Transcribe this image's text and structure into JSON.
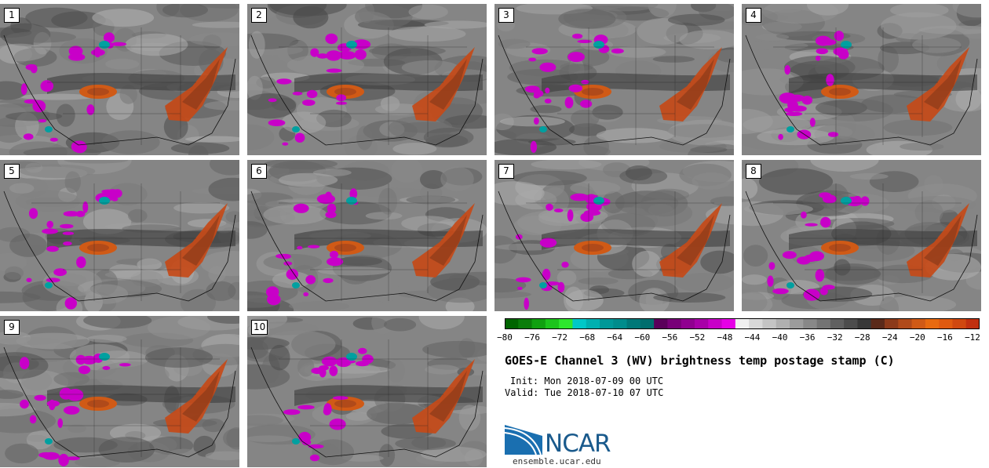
{
  "stamps": [
    {
      "label": "1"
    },
    {
      "label": "2"
    },
    {
      "label": "3"
    },
    {
      "label": "4"
    },
    {
      "label": "5"
    },
    {
      "label": "6"
    },
    {
      "label": "7"
    },
    {
      "label": "8"
    },
    {
      "label": "9"
    },
    {
      "label": "10"
    }
  ],
  "colorbar": {
    "colors": [
      "#006400",
      "#0a7d0a",
      "#10a010",
      "#1cc41c",
      "#2ee62e",
      "#00c8c8",
      "#00b0b0",
      "#009898",
      "#008c8c",
      "#007878",
      "#006e6e",
      "#5a005a",
      "#780078",
      "#900090",
      "#a800a8",
      "#c800c8",
      "#e600e6",
      "#f0f0f0",
      "#d8d8d8",
      "#c4c4c4",
      "#b0b0b0",
      "#9c9c9c",
      "#888888",
      "#747474",
      "#606060",
      "#4c4c4c",
      "#383838",
      "#5a2a1a",
      "#8c3a1a",
      "#b04a1a",
      "#d05a16",
      "#e86a10",
      "#e05a10",
      "#d04810",
      "#c03010"
    ],
    "tick_labels": [
      "-80",
      "-76",
      "-72",
      "-68",
      "-64",
      "-60",
      "-56",
      "-52",
      "-48",
      "-44",
      "-40",
      "-36",
      "-32",
      "-28",
      "-24",
      "-20",
      "-16",
      "-12"
    ]
  },
  "title": "GOES-E Channel 3 (WV) brightness temp postage stamp (C)",
  "init": "Init: Mon 2018-07-09 00 UTC",
  "valid": "Valid: Tue 2018-07-10 07 UTC",
  "logo": {
    "name": "NCAR",
    "url": "ensemble.ucar.edu"
  }
}
